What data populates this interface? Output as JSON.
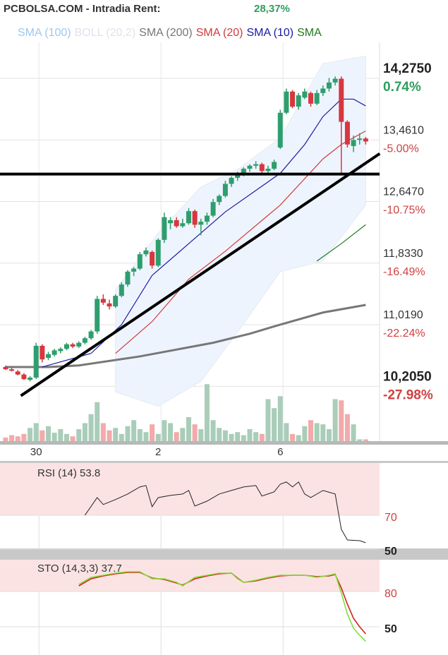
{
  "chart_data": {
    "type": "candlestick",
    "title": "PCBOLSA.COM - Intradia  Rent:",
    "return_label": "28,37%",
    "return_color": "#2e9e5e",
    "up_color": "#2e9e6e",
    "down_color": "#d7373f",
    "volume_up_color": "#a9cdb9",
    "volume_down_color": "#f2aaaa",
    "grid": true,
    "categories": [
      null,
      null,
      null,
      null,
      null,
      "30",
      null,
      null,
      null,
      null,
      null,
      null,
      null,
      null,
      null,
      null,
      null,
      null,
      null,
      null,
      null,
      null,
      null,
      null,
      null,
      "2",
      null,
      null,
      null,
      null,
      null,
      null,
      null,
      null,
      null,
      null,
      null,
      null,
      null,
      null,
      null,
      null,
      null,
      null,
      null,
      "6",
      null,
      null,
      null,
      null,
      null,
      null,
      null,
      null,
      null,
      null,
      null,
      null,
      null,
      null
    ],
    "xlim": [
      -0.92,
      61.27
    ],
    "ylim": [
      9.48,
      15.31
    ],
    "yticks": [
      {
        "value": 14.275,
        "label": "14,2750"
      },
      {
        "value": 13.461,
        "label": "13,4610"
      },
      {
        "value": 12.647,
        "label": "12,6470"
      },
      {
        "value": 11.833,
        "label": "11,8330"
      },
      {
        "value": 11.019,
        "label": "11,0190"
      },
      {
        "value": 10.205,
        "label": "10,2050"
      }
    ],
    "ytick_pct_labels": [
      "0.74%",
      "-5.00%",
      "-10.75%",
      "-16.49%",
      "-22.24%",
      "-27.98%"
    ],
    "candles": [
      [
        10.46,
        10.48,
        10.42,
        10.43
      ],
      [
        10.43,
        10.45,
        10.4,
        10.41
      ],
      [
        10.4,
        10.42,
        10.35,
        10.36
      ],
      [
        10.36,
        10.38,
        10.29,
        10.3
      ],
      [
        10.29,
        10.34,
        10.27,
        10.32
      ],
      [
        10.32,
        10.78,
        10.3,
        10.74
      ],
      [
        10.74,
        10.76,
        10.52,
        10.56
      ],
      [
        10.58,
        10.66,
        10.55,
        10.63
      ],
      [
        10.62,
        10.7,
        10.6,
        10.68
      ],
      [
        10.67,
        10.72,
        10.64,
        10.7
      ],
      [
        10.7,
        10.78,
        10.68,
        10.76
      ],
      [
        10.76,
        10.78,
        10.71,
        10.73
      ],
      [
        10.73,
        10.8,
        10.71,
        10.78
      ],
      [
        10.78,
        10.86,
        10.76,
        10.84
      ],
      [
        10.84,
        10.95,
        10.82,
        10.93
      ],
      [
        10.93,
        11.4,
        10.9,
        11.36
      ],
      [
        11.36,
        11.42,
        11.28,
        11.31
      ],
      [
        11.3,
        11.35,
        11.22,
        11.26
      ],
      [
        11.26,
        11.42,
        11.24,
        11.4
      ],
      [
        11.4,
        11.58,
        11.38,
        11.55
      ],
      [
        11.55,
        11.74,
        11.52,
        11.72
      ],
      [
        11.72,
        11.78,
        11.66,
        11.76
      ],
      [
        11.76,
        11.98,
        11.74,
        11.95
      ],
      [
        11.95,
        12.04,
        11.92,
        12.0
      ],
      [
        11.98,
        12.0,
        11.76,
        11.8
      ],
      [
        11.8,
        12.16,
        11.78,
        12.14
      ],
      [
        12.14,
        12.5,
        12.1,
        12.44
      ],
      [
        12.36,
        12.44,
        12.28,
        12.4
      ],
      [
        12.4,
        12.44,
        12.3,
        12.32
      ],
      [
        12.32,
        12.42,
        12.3,
        12.36
      ],
      [
        12.36,
        12.56,
        12.34,
        12.52
      ],
      [
        12.52,
        12.54,
        12.3,
        12.34
      ],
      [
        12.34,
        12.42,
        12.2,
        12.38
      ],
      [
        12.38,
        12.5,
        12.34,
        12.46
      ],
      [
        12.46,
        12.68,
        12.44,
        12.64
      ],
      [
        12.64,
        12.74,
        12.6,
        12.72
      ],
      [
        12.72,
        12.92,
        12.7,
        12.88
      ],
      [
        12.88,
        12.98,
        12.84,
        12.96
      ],
      [
        12.96,
        13.04,
        12.92,
        13.02
      ],
      [
        13.02,
        13.1,
        12.98,
        13.08
      ],
      [
        13.08,
        13.14,
        13.04,
        13.12
      ],
      [
        13.12,
        13.18,
        13.08,
        13.14
      ],
      [
        13.14,
        13.16,
        13.02,
        13.05
      ],
      [
        13.05,
        13.12,
        13.0,
        13.08
      ],
      [
        13.08,
        13.2,
        13.06,
        13.17
      ],
      [
        13.36,
        13.86,
        13.34,
        13.82
      ],
      [
        13.82,
        14.14,
        13.8,
        14.1
      ],
      [
        14.1,
        14.12,
        13.88,
        13.9
      ],
      [
        13.9,
        14.08,
        13.86,
        14.05
      ],
      [
        14.02,
        14.14,
        14.0,
        14.1
      ],
      [
        14.08,
        14.1,
        13.9,
        13.94
      ],
      [
        13.94,
        14.12,
        13.92,
        14.08
      ],
      [
        14.08,
        14.18,
        14.04,
        14.14
      ],
      [
        14.14,
        14.28,
        14.1,
        14.22
      ],
      [
        14.22,
        14.3,
        14.18,
        14.27
      ],
      [
        14.27,
        14.3,
        13.02,
        13.7
      ],
      [
        13.7,
        13.72,
        13.36,
        13.4
      ],
      [
        13.38,
        13.52,
        13.3,
        13.46
      ],
      [
        13.46,
        13.55,
        13.4,
        13.48
      ],
      [
        13.48,
        13.5,
        13.4,
        13.44
      ]
    ],
    "volume_lim": [
      0,
      100
    ],
    "volume": [
      6,
      10,
      8,
      12,
      22,
      30,
      18,
      25,
      14,
      20,
      12,
      8,
      20,
      30,
      45,
      65,
      30,
      18,
      22,
      12,
      25,
      35,
      20,
      15,
      28,
      12,
      35,
      30,
      15,
      22,
      40,
      28,
      20,
      95,
      35,
      22,
      18,
      12,
      15,
      10,
      20,
      15,
      12,
      70,
      55,
      75,
      30,
      12,
      10,
      25,
      35,
      30,
      28,
      20,
      70,
      68,
      45,
      28,
      3,
      3
    ],
    "overlays": [
      {
        "name": "SMA (100)",
        "color": "#9cc8ee"
      },
      {
        "name": "BOLL (20,2)",
        "color": "#e6eaf2",
        "fill": "#eef4fd",
        "x": [
          18,
          25,
          32,
          38,
          45,
          52,
          59
        ],
        "upper": [
          11.48,
          12.23,
          12.84,
          13.07,
          13.49,
          14.47,
          14.57
        ],
        "lower": [
          10.13,
          9.94,
          10.27,
          10.92,
          11.72,
          11.86,
          12.6
        ]
      },
      {
        "name": "SMA (200)",
        "color": "#777777",
        "width": 3,
        "x": [
          0,
          7,
          12,
          22,
          34,
          40,
          45,
          52,
          59
        ],
        "values": [
          10.46,
          10.46,
          10.48,
          10.6,
          10.78,
          10.9,
          11.02,
          11.18,
          11.28
        ]
      },
      {
        "name": "SMA (20)",
        "color": "#d23a3a",
        "width": 1.2,
        "x": [
          18,
          24,
          30,
          36,
          45,
          52,
          55,
          59
        ],
        "values": [
          10.64,
          11.06,
          11.62,
          11.99,
          12.6,
          13.21,
          13.4,
          13.58
        ]
      },
      {
        "name": "SMA (10)",
        "color": "#1a1aa8",
        "width": 1.2,
        "x": [
          6,
          14,
          19,
          24,
          30,
          36,
          45,
          49,
          52,
          55,
          57,
          59
        ],
        "values": [
          10.46,
          10.64,
          11.02,
          11.67,
          12.09,
          12.51,
          13.02,
          13.4,
          13.77,
          14.0,
          14.0,
          13.91
        ]
      },
      {
        "name": "SMA",
        "color": "#1d7a1d",
        "width": 1.2,
        "x": [
          51,
          55,
          59
        ],
        "values": [
          11.86,
          12.09,
          12.34
        ]
      }
    ],
    "trendlines": [
      {
        "x": [
          -0.92,
          61.27
        ],
        "y": [
          13.01,
          13.01
        ]
      },
      {
        "x": [
          2.5,
          61.3
        ],
        "y": [
          10.08,
          13.28
        ]
      }
    ],
    "rsi": {
      "title": "RSI (14) 53.8",
      "ylim": [
        50,
        101.2
      ],
      "yticks": [
        70,
        50
      ],
      "band_from": 70,
      "color": "#222222",
      "x": [
        13,
        15,
        16,
        18,
        20,
        22,
        23,
        24,
        25,
        27,
        29,
        30,
        31,
        33,
        35,
        37,
        39,
        41,
        42,
        44,
        45,
        46,
        47,
        48,
        49,
        50,
        52,
        54,
        55,
        56,
        58,
        59
      ],
      "values": [
        70,
        80.4,
        76.3,
        79.2,
        82.5,
        86.7,
        87.5,
        75,
        80.4,
        81.7,
        82.5,
        84.6,
        75.4,
        78.3,
        82.5,
        84.6,
        86.7,
        87.5,
        81.3,
        83.8,
        88.3,
        89.6,
        86.7,
        89.6,
        82.5,
        80.4,
        84.6,
        82.5,
        61.7,
        55.4,
        55,
        53.8
      ]
    },
    "sto": {
      "title": "STO (14,3,3) 37.7",
      "ylim": [
        26,
        107
      ],
      "yticks": [
        80,
        50
      ],
      "band_from": 80,
      "x": [
        12,
        14,
        16,
        18,
        20,
        22,
        24,
        26,
        28,
        29,
        31,
        33,
        35,
        37,
        38,
        39,
        41,
        43,
        45,
        47,
        49,
        51,
        53,
        54,
        55,
        56,
        57,
        58,
        59
      ],
      "series": [
        {
          "color": "#d42020",
          "values": [
            84.8,
            90.8,
            93.2,
            95.0,
            96.2,
            96.2,
            91.4,
            90.2,
            87.2,
            85.4,
            90.8,
            93.2,
            95.0,
            95.6,
            91.4,
            87.8,
            89.0,
            91.4,
            93.2,
            93.8,
            93.8,
            92.6,
            93.2,
            94.4,
            83.0,
            69.2,
            57.2,
            50.0,
            44.0
          ]
        },
        {
          "color": "#7fe03a",
          "values": [
            86.0,
            92.0,
            93.8,
            95.6,
            96.8,
            96.8,
            90.8,
            90.8,
            87.8,
            84.8,
            92.0,
            93.8,
            95.6,
            95.6,
            90.8,
            87.8,
            89.6,
            92.0,
            93.8,
            93.8,
            93.8,
            92.0,
            93.8,
            95.0,
            78.8,
            60.8,
            48.8,
            42.8,
            37.7
          ]
        }
      ]
    }
  }
}
